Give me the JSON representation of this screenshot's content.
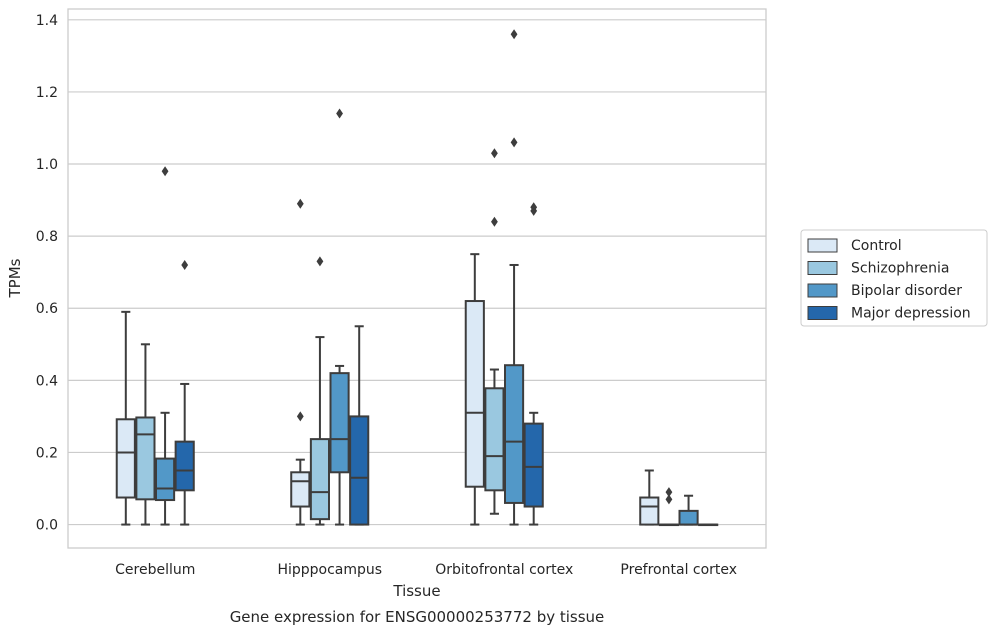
{
  "chart_data": {
    "type": "box",
    "title": "",
    "caption": "Gene expression for ENSG00000253772 by tissue",
    "xlabel": "Tissue",
    "ylabel": "TPMs",
    "ylim": [
      -0.065,
      1.43
    ],
    "yticks": [
      0.0,
      0.2,
      0.4,
      0.6,
      0.8,
      1.0,
      1.2,
      1.4
    ],
    "ytick_labels": [
      "0.0",
      "0.2",
      "0.4",
      "0.6",
      "0.8",
      "1.0",
      "1.2",
      "1.4"
    ],
    "grid": "horizontal",
    "legend_position": "right",
    "categories": [
      "Cerebellum",
      "Hipppocampus",
      "Orbitofrontal cortex",
      "Prefrontal cortex"
    ],
    "series": [
      {
        "name": "Control",
        "color": "#dbe9f6",
        "boxes": [
          {
            "whisker_low": 0.0,
            "q1": 0.075,
            "median": 0.2,
            "q3": 0.292,
            "whisker_high": 0.59,
            "outliers": []
          },
          {
            "whisker_low": 0.0,
            "q1": 0.05,
            "median": 0.12,
            "q3": 0.145,
            "whisker_high": 0.18,
            "outliers": [
              0.3,
              0.89
            ]
          },
          {
            "whisker_low": 0.0,
            "q1": 0.105,
            "median": 0.31,
            "q3": 0.62,
            "whisker_high": 0.75,
            "outliers": []
          },
          {
            "whisker_low": 0.0,
            "q1": 0.0,
            "median": 0.05,
            "q3": 0.075,
            "whisker_high": 0.15,
            "outliers": []
          }
        ]
      },
      {
        "name": "Schizophrenia",
        "color": "#9ac8e0",
        "boxes": [
          {
            "whisker_low": 0.0,
            "q1": 0.07,
            "median": 0.25,
            "q3": 0.297,
            "whisker_high": 0.5,
            "outliers": []
          },
          {
            "whisker_low": 0.0,
            "q1": 0.015,
            "median": 0.09,
            "q3": 0.237,
            "whisker_high": 0.52,
            "outliers": [
              0.73
            ]
          },
          {
            "whisker_low": 0.03,
            "q1": 0.095,
            "median": 0.19,
            "q3": 0.378,
            "whisker_high": 0.43,
            "outliers": [
              0.84,
              1.03
            ]
          },
          {
            "whisker_low": 0.0,
            "q1": 0.0,
            "median": 0.0,
            "q3": 0.0,
            "whisker_high": 0.0,
            "outliers": [
              0.07,
              0.09
            ]
          }
        ]
      },
      {
        "name": "Bipolar disorder",
        "color": "#5298c8",
        "boxes": [
          {
            "whisker_low": 0.0,
            "q1": 0.068,
            "median": 0.1,
            "q3": 0.183,
            "whisker_high": 0.31,
            "outliers": [
              0.98
            ]
          },
          {
            "whisker_low": 0.0,
            "q1": 0.145,
            "median": 0.237,
            "q3": 0.42,
            "whisker_high": 0.44,
            "outliers": [
              1.14
            ]
          },
          {
            "whisker_low": 0.0,
            "q1": 0.06,
            "median": 0.23,
            "q3": 0.442,
            "whisker_high": 0.72,
            "outliers": [
              1.06,
              1.36
            ]
          },
          {
            "whisker_low": 0.0,
            "q1": 0.0,
            "median": 0.0,
            "q3": 0.038,
            "whisker_high": 0.08,
            "outliers": []
          }
        ]
      },
      {
        "name": "Major depression",
        "color": "#2467ab",
        "boxes": [
          {
            "whisker_low": 0.0,
            "q1": 0.095,
            "median": 0.15,
            "q3": 0.23,
            "whisker_high": 0.39,
            "outliers": [
              0.72
            ]
          },
          {
            "whisker_low": 0.0,
            "q1": 0.0,
            "median": 0.13,
            "q3": 0.3,
            "whisker_high": 0.55,
            "outliers": []
          },
          {
            "whisker_low": 0.0,
            "q1": 0.05,
            "median": 0.16,
            "q3": 0.28,
            "whisker_high": 0.31,
            "outliers": [
              0.87,
              0.88
            ]
          },
          {
            "whisker_low": 0.0,
            "q1": 0.0,
            "median": 0.0,
            "q3": 0.0,
            "whisker_high": 0.0,
            "outliers": []
          }
        ]
      }
    ]
  }
}
